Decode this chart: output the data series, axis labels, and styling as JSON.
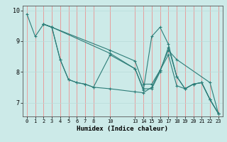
{
  "title": "",
  "xlabel": "Humidex (Indice chaleur)",
  "bg_color": "#cceae8",
  "grid_color_v": "#f08080",
  "grid_color_h": "#b8dbd9",
  "line_color": "#2d7d78",
  "xlim": [
    -0.5,
    23.5
  ],
  "ylim": [
    6.55,
    10.15
  ],
  "yticks": [
    7,
    8,
    9,
    10
  ],
  "xticks": [
    0,
    1,
    2,
    3,
    4,
    5,
    6,
    7,
    8,
    10,
    13,
    14,
    15,
    16,
    17,
    18,
    19,
    20,
    21,
    22,
    23
  ],
  "xtick_labels": [
    "0",
    "1",
    "2",
    "3",
    "4",
    "5",
    "6",
    "7",
    "8",
    "10",
    "13",
    "14",
    "15",
    "16",
    "17",
    "18",
    "19",
    "20",
    "21",
    "22",
    "23"
  ],
  "series": [
    {
      "x": [
        0,
        1,
        2,
        3,
        4,
        5,
        6,
        7,
        8,
        10,
        13,
        14,
        15,
        16,
        17,
        18,
        19,
        20,
        21,
        22,
        23
      ],
      "y": [
        9.88,
        9.15,
        9.55,
        9.45,
        8.4,
        7.75,
        7.65,
        7.6,
        7.5,
        7.45,
        7.35,
        7.32,
        7.5,
        8.05,
        8.55,
        7.55,
        7.45,
        7.6,
        7.65,
        7.1,
        6.65
      ]
    },
    {
      "x": [
        2,
        3,
        4,
        5,
        6,
        7,
        8,
        10,
        13,
        14,
        15,
        16,
        17,
        18,
        19,
        20,
        21,
        22,
        23
      ],
      "y": [
        9.55,
        9.45,
        8.4,
        7.75,
        7.65,
        7.6,
        7.5,
        8.55,
        8.1,
        7.4,
        9.15,
        9.45,
        8.9,
        7.85,
        7.45,
        7.6,
        7.65,
        7.1,
        6.65
      ]
    },
    {
      "x": [
        2,
        3,
        10,
        13,
        14,
        15,
        16,
        17,
        18,
        19,
        20,
        21,
        22,
        23
      ],
      "y": [
        9.55,
        9.45,
        8.6,
        8.1,
        7.45,
        7.45,
        8.0,
        8.8,
        7.85,
        7.45,
        7.6,
        7.65,
        7.1,
        6.65
      ]
    },
    {
      "x": [
        2,
        3,
        10,
        13,
        14,
        15,
        16,
        17,
        18,
        22,
        23
      ],
      "y": [
        9.55,
        9.45,
        8.7,
        8.35,
        7.6,
        7.6,
        8.05,
        8.7,
        8.4,
        7.65,
        6.65
      ]
    }
  ]
}
